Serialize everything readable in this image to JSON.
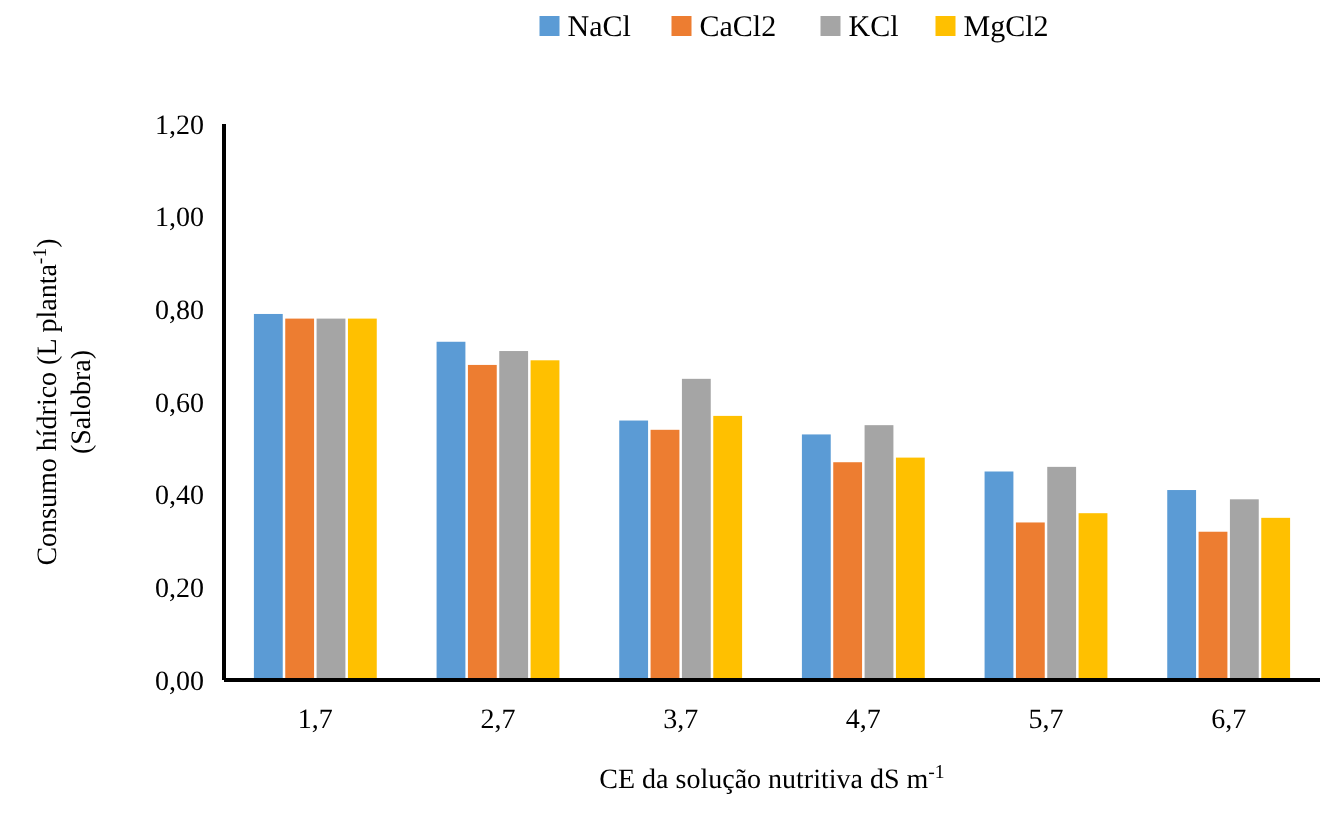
{
  "chart_data": {
    "type": "bar",
    "xlabel": "CE da solução nutritiva  dS m$^{-1}$",
    "ylabel": "Consumo hídrico (L planta$^{-1}$)\n(Salobra)",
    "categories": [
      "1,7",
      "2,7",
      "3,7",
      "4,7",
      "5,7",
      "6,7"
    ],
    "series": [
      {
        "name": "NaCl",
        "color": "#5b9bd5",
        "values": [
          0.79,
          0.73,
          0.56,
          0.53,
          0.45,
          0.41
        ]
      },
      {
        "name": "CaCl2",
        "color": "#ed7d31",
        "values": [
          0.78,
          0.68,
          0.54,
          0.47,
          0.34,
          0.32
        ]
      },
      {
        "name": "KCl",
        "color": "#a5a5a5",
        "values": [
          0.78,
          0.71,
          0.65,
          0.55,
          0.46,
          0.39
        ]
      },
      {
        "name": "MgCl2",
        "color": "#ffc000",
        "values": [
          0.78,
          0.69,
          0.57,
          0.48,
          0.36,
          0.35
        ]
      }
    ],
    "ylim": [
      0,
      1.2
    ],
    "yticks": [
      {
        "value": 0,
        "label": "0,00"
      },
      {
        "value": 0.2,
        "label": "0,20"
      },
      {
        "value": 0.4,
        "label": "0,40"
      },
      {
        "value": 0.6,
        "label": "0,60"
      },
      {
        "value": 0.8,
        "label": "0,80"
      },
      {
        "value": 1.0,
        "label": "1,00"
      },
      {
        "value": 1.2,
        "label": "1,20"
      }
    ],
    "grid": false,
    "legend": "top"
  }
}
